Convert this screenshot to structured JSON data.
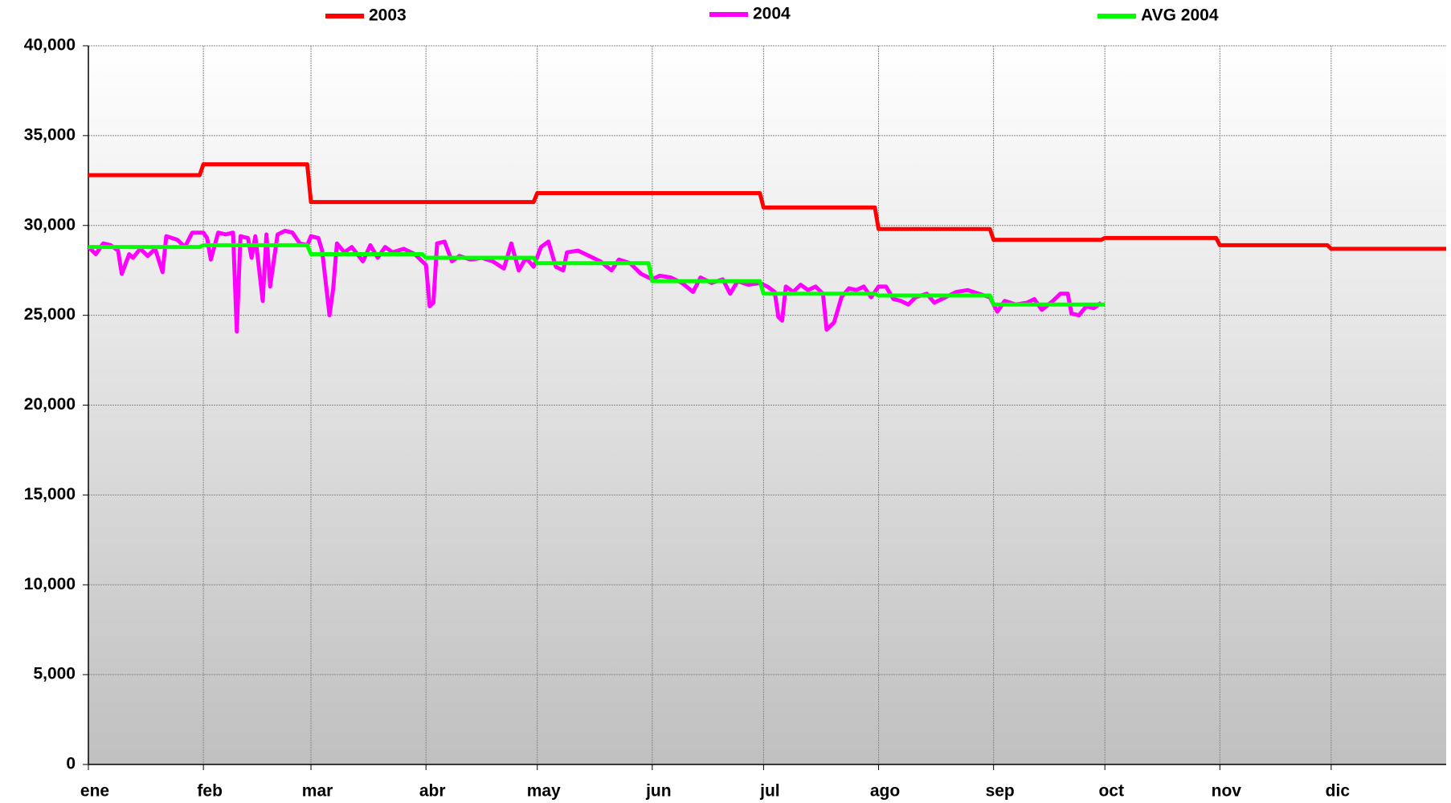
{
  "chart_data": {
    "type": "line",
    "xlim": [
      0,
      366
    ],
    "xticks": [
      {
        "value": 0,
        "label": "ene"
      },
      {
        "value": 31,
        "label": "feb"
      },
      {
        "value": 60,
        "label": "mar"
      },
      {
        "value": 91,
        "label": "abr"
      },
      {
        "value": 121,
        "label": "may"
      },
      {
        "value": 152,
        "label": "jun"
      },
      {
        "value": 182,
        "label": "jul"
      },
      {
        "value": 213,
        "label": "ago"
      },
      {
        "value": 244,
        "label": "sep"
      },
      {
        "value": 274,
        "label": "oct"
      },
      {
        "value": 305,
        "label": "nov"
      },
      {
        "value": 335,
        "label": "dic"
      }
    ],
    "ylim": [
      0,
      40000
    ],
    "yticks": [
      0,
      {
        "value": 5000,
        "label": "5,000"
      },
      {
        "value": 10000,
        "label": "10,000"
      },
      {
        "value": 15000,
        "label": "15,000"
      },
      {
        "value": 20000,
        "label": "20,000"
      },
      {
        "value": 25000,
        "label": "25,000"
      },
      {
        "value": 30000,
        "label": "30,000"
      },
      {
        "value": 35000,
        "label": "35,000"
      },
      {
        "value": 40000,
        "label": "40,000"
      }
    ],
    "grid": true,
    "legend": "top",
    "series": [
      {
        "name": "2003",
        "color": "#ff0000",
        "label_color": "#ff3300",
        "x": [
          0,
          30,
          31,
          59,
          60,
          90,
          91,
          120,
          121,
          151,
          152,
          181,
          182,
          212,
          213,
          243,
          244,
          273,
          274,
          304,
          305,
          334,
          335,
          366
        ],
        "values": [
          32800,
          32800,
          33400,
          33400,
          31300,
          31300,
          31300,
          31300,
          31800,
          31800,
          31800,
          31800,
          31000,
          31000,
          29800,
          29800,
          29200,
          29200,
          29300,
          29300,
          28900,
          28900,
          28700,
          28700
        ]
      },
      {
        "name": "2004",
        "color": "#ff00ff",
        "label_color": "#3399ff",
        "x": [
          0,
          2,
          4,
          6,
          8,
          9,
          11,
          12,
          14,
          16,
          18,
          20,
          21,
          24,
          26,
          28,
          31,
          32,
          33,
          35,
          37,
          39,
          40,
          41,
          43,
          44,
          45,
          47,
          48,
          49,
          51,
          53,
          55,
          57,
          59,
          60,
          62,
          63,
          65,
          66,
          67,
          69,
          71,
          74,
          76,
          78,
          80,
          82,
          85,
          88,
          91,
          92,
          93,
          94,
          96,
          98,
          100,
          103,
          106,
          109,
          112,
          114,
          116,
          118,
          120,
          122,
          124,
          126,
          128,
          129,
          132,
          135,
          138,
          141,
          143,
          146,
          149,
          152,
          154,
          157,
          160,
          163,
          165,
          168,
          171,
          173,
          175,
          178,
          181,
          183,
          185,
          186,
          187,
          188,
          190,
          192,
          194,
          196,
          198,
          199,
          201,
          203,
          205,
          207,
          209,
          211,
          213,
          215,
          217,
          219,
          221,
          223,
          226,
          228,
          231,
          234,
          237,
          240,
          243,
          245,
          247,
          250,
          253,
          255,
          257,
          260,
          262,
          264,
          265,
          267,
          269,
          271,
          273
        ],
        "values": [
          28800,
          28400,
          29000,
          28900,
          28600,
          27300,
          28400,
          28200,
          28700,
          28300,
          28700,
          27400,
          29400,
          29200,
          28800,
          29600,
          29600,
          29300,
          28100,
          29600,
          29500,
          29600,
          24100,
          29400,
          29300,
          28200,
          29400,
          25800,
          29500,
          26600,
          29500,
          29700,
          29600,
          29000,
          28900,
          29400,
          29300,
          28600,
          25000,
          26500,
          29000,
          28500,
          28800,
          28000,
          28900,
          28200,
          28800,
          28500,
          28700,
          28400,
          27800,
          25500,
          25700,
          29000,
          29100,
          28000,
          28300,
          28100,
          28200,
          28000,
          27600,
          29000,
          27500,
          28200,
          27700,
          28800,
          29100,
          27700,
          27500,
          28500,
          28600,
          28300,
          28000,
          27500,
          28100,
          27900,
          27300,
          27000,
          27200,
          27100,
          26800,
          26300,
          27100,
          26800,
          27000,
          26200,
          26900,
          26700,
          26800,
          26600,
          26300,
          24900,
          24700,
          26600,
          26300,
          26700,
          26400,
          26600,
          26200,
          24200,
          24600,
          26000,
          26500,
          26400,
          26600,
          26000,
          26600,
          26600,
          25900,
          25800,
          25600,
          26000,
          26200,
          25700,
          26000,
          26300,
          26400,
          26200,
          26000,
          25200,
          25800,
          25600,
          25700,
          25900,
          25300,
          25800,
          26200,
          26200,
          25100,
          25000,
          25500,
          25400,
          25700
        ]
      },
      {
        "name": "AVG 2004",
        "color": "#00ff00",
        "label_color": "#00ee00",
        "x": [
          0,
          30,
          31,
          59,
          60,
          90,
          91,
          120,
          121,
          151,
          152,
          181,
          182,
          212,
          213,
          243,
          244,
          274
        ],
        "values": [
          28800,
          28800,
          28900,
          28900,
          28400,
          28400,
          28200,
          28200,
          27900,
          27900,
          26900,
          26900,
          26200,
          26200,
          26100,
          26100,
          25600,
          25600
        ]
      }
    ]
  }
}
